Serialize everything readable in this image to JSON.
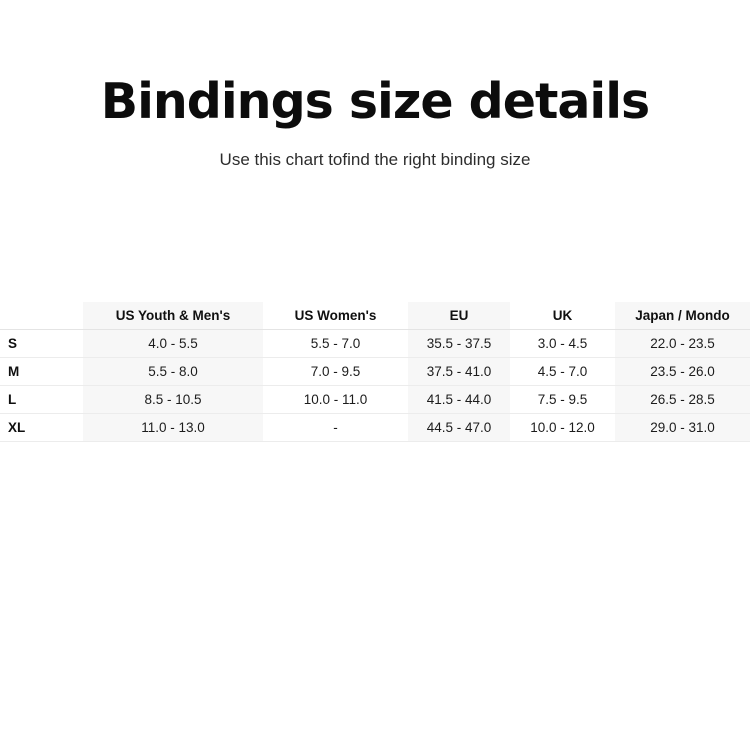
{
  "page": {
    "title": "Bindings size details",
    "subtitle": "Use this chart tofind the right binding size"
  },
  "chart_data": {
    "type": "table",
    "title": "Bindings size details",
    "subtitle": "Use this chart tofind the right binding size",
    "columns": [
      "",
      "US Youth & Men's",
      "US Women's",
      "EU",
      "UK",
      "Japan / Mondo"
    ],
    "rows": [
      {
        "size": "S",
        "values": [
          "4.0 - 5.5",
          "5.5 - 7.0",
          "35.5 - 37.5",
          "3.0 - 4.5",
          "22.0 - 23.5"
        ]
      },
      {
        "size": "M",
        "values": [
          "5.5 - 8.0",
          "7.0 - 9.5",
          "37.5 - 41.0",
          "4.5 - 7.0",
          "23.5 - 26.0"
        ]
      },
      {
        "size": "L",
        "values": [
          "8.5 - 10.5",
          "10.0 - 11.0",
          "41.5 - 44.0",
          "7.5 - 9.5",
          "26.5 - 28.5"
        ]
      },
      {
        "size": "XL",
        "values": [
          "11.0 - 13.0",
          "-",
          "44.5 - 47.0",
          "10.0 - 12.0",
          "29.0 - 31.0"
        ]
      }
    ],
    "layout": {
      "striped_column_labels": [
        "US Youth & Men's",
        "EU",
        "Japan / Mondo"
      ],
      "grid": "horizontal-rules-only",
      "size_label_alignment": "left",
      "value_alignment": "center"
    }
  },
  "colors": {
    "stripe_bg": "#f7f7f7",
    "row_border": "#ececec",
    "header_border": "#e4e4e4",
    "title_color": "#0c0c0c",
    "subtitle_color": "#2d2d2d"
  }
}
